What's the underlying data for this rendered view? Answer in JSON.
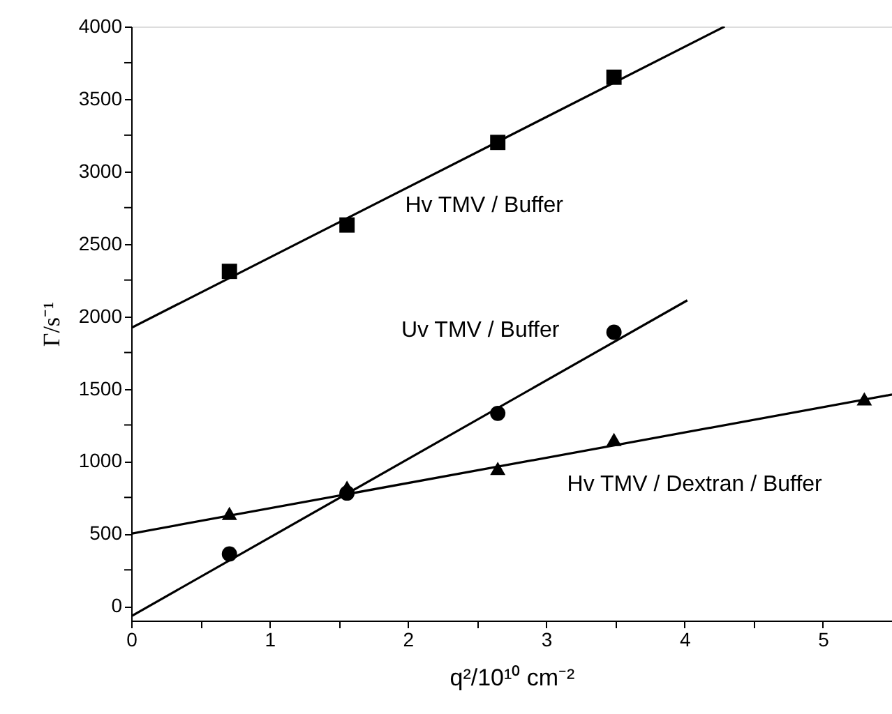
{
  "chart_data": {
    "type": "scatter",
    "xlabel": "q²/10¹⁰ cm⁻²",
    "ylabel": "Γ/s⁻¹",
    "xlim": [
      0,
      5.5
    ],
    "ylim": [
      -100,
      4000
    ],
    "xticks": [
      0,
      {
        "value": 0.5,
        "label": null
      },
      1,
      {
        "value": 1.5,
        "label": null
      },
      2,
      {
        "value": 2.5,
        "label": null
      },
      3,
      {
        "value": 3.5,
        "label": null
      },
      4,
      {
        "value": 4.5,
        "label": null
      },
      5
    ],
    "yticks": [
      0,
      {
        "value": 250,
        "label": null
      },
      500,
      {
        "value": 750,
        "label": null
      },
      1000,
      {
        "value": 1250,
        "label": null
      },
      1500,
      {
        "value": 1750,
        "label": null
      },
      2000,
      {
        "value": 2250,
        "label": null
      },
      2500,
      {
        "value": 2750,
        "label": null
      },
      3000,
      {
        "value": 3250,
        "label": null
      },
      3500,
      {
        "value": 3750,
        "label": null
      },
      4000
    ],
    "grid": false,
    "series": [
      {
        "marker": "square",
        "color": "#000000",
        "x": [
          0.71,
          1.56,
          2.65,
          3.49
        ],
        "values": [
          2310,
          2630,
          3200,
          3650
        ]
      },
      {
        "marker": "circle",
        "color": "#000000",
        "x": [
          0.71,
          1.56,
          2.65,
          3.49
        ],
        "values": [
          360,
          780,
          1330,
          1890
        ]
      },
      {
        "marker": "triangle",
        "color": "#000000",
        "x": [
          0.71,
          1.56,
          2.65,
          3.49,
          5.3
        ],
        "values": [
          640,
          820,
          950,
          1150,
          1430
        ]
      },
      {
        "type": "line",
        "line_style": "solid",
        "color": "#000000",
        "x": [
          0,
          4.29
        ],
        "values": [
          1920,
          4000
        ]
      },
      {
        "type": "line",
        "line_style": "solid",
        "color": "#000000",
        "x": [
          0,
          4.02
        ],
        "values": [
          -70,
          2110
        ]
      },
      {
        "type": "line",
        "line_style": "solid",
        "color": "#000000",
        "x": [
          0,
          5.5
        ],
        "values": [
          500,
          1460
        ]
      }
    ],
    "annotations": [
      "Hv TMV / Buffer",
      "Uv TMV / Buffer",
      "Hv TMV / Dextran / Buffer"
    ]
  }
}
